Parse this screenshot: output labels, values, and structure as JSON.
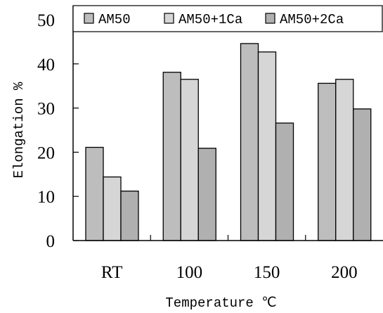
{
  "chart_data": {
    "type": "bar",
    "categories": [
      "RT",
      "100",
      "150",
      "200"
    ],
    "series": [
      {
        "name": "AM50",
        "values": [
          21.1,
          38.1,
          44.6,
          35.6
        ],
        "color": "#bdbdbd"
      },
      {
        "name": "AM50+1Ca",
        "values": [
          14.4,
          36.5,
          42.7,
          36.5
        ],
        "color": "#d6d6d6"
      },
      {
        "name": "AM50+2Ca",
        "values": [
          11.2,
          20.9,
          26.6,
          29.8
        ],
        "color": "#b0b0b0"
      }
    ],
    "xlabel": "Temperature ℃",
    "ylabel": "Elongation %",
    "ylim": [
      0,
      50
    ],
    "yticks": [
      "0",
      "10",
      "20",
      "30",
      "40",
      "50"
    ],
    "legend_position": "top",
    "grid": false
  }
}
